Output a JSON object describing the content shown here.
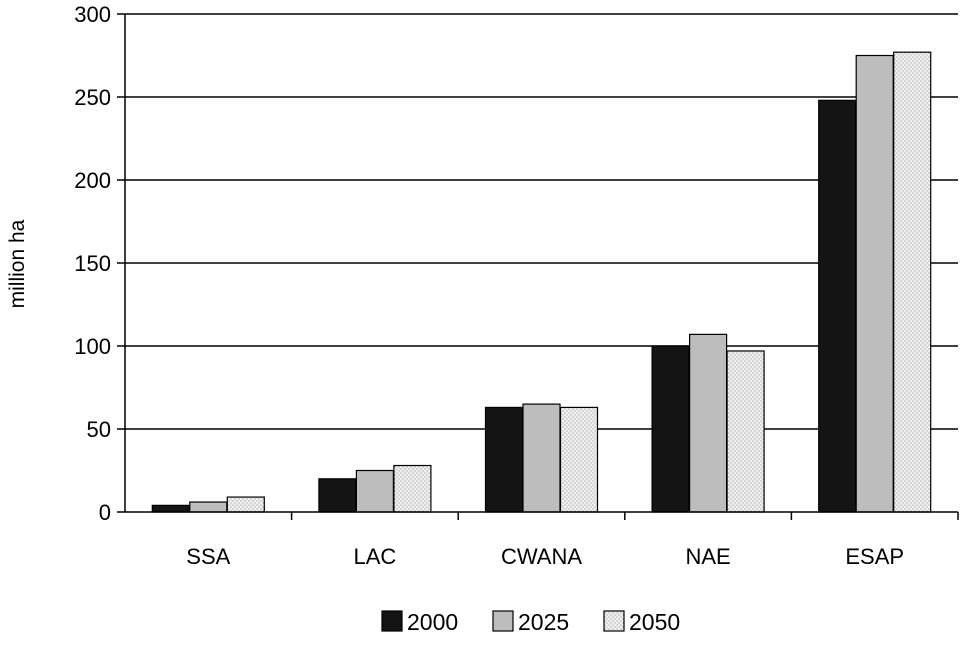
{
  "chart_data": {
    "type": "bar",
    "title": "",
    "xlabel": "",
    "ylabel": "million ha",
    "ylim": [
      0,
      300
    ],
    "yticks": [
      0,
      50,
      100,
      150,
      200,
      250,
      300
    ],
    "categories": [
      "SSA",
      "LAC",
      "CWANA",
      "NAE",
      "ESAP"
    ],
    "series": [
      {
        "name": "2000",
        "fill": "#141414",
        "pattern": "solid",
        "values": [
          4,
          20,
          63,
          100,
          248
        ]
      },
      {
        "name": "2025",
        "fill": "#bdbdbd",
        "pattern": "solid",
        "values": [
          6,
          25,
          65,
          107,
          275
        ]
      },
      {
        "name": "2050",
        "fill": "#e6e6e6",
        "pattern": "dots",
        "values": [
          9,
          28,
          63,
          97,
          277
        ]
      }
    ],
    "grid": true,
    "legend_position": "bottom"
  }
}
